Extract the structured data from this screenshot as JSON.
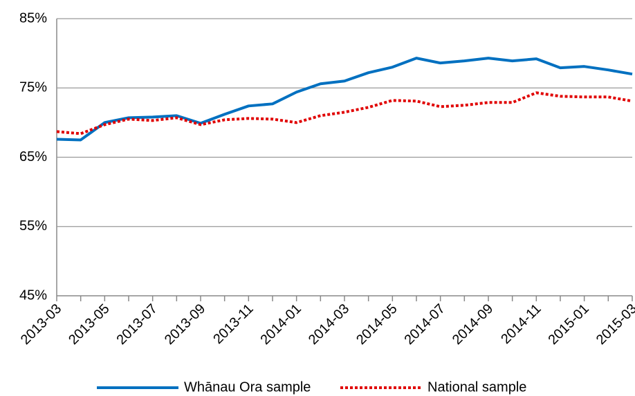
{
  "chart_data": {
    "type": "line",
    "categories": [
      "2013-03",
      null,
      "2013-05",
      null,
      "2013-07",
      null,
      "2013-09",
      null,
      "2013-11",
      null,
      "2014-01",
      null,
      "2014-03",
      null,
      "2014-05",
      null,
      "2014-07",
      null,
      "2014-09",
      null,
      "2014-11",
      null,
      "2015-01",
      null,
      "2015-03"
    ],
    "series": [
      {
        "name": "Whānau Ora sample",
        "color": "#0070c0",
        "style": "solid",
        "values": [
          67.6,
          67.5,
          70.0,
          70.7,
          70.8,
          71.0,
          69.9,
          71.2,
          72.4,
          72.7,
          74.4,
          75.6,
          76.0,
          77.2,
          78.0,
          79.3,
          78.6,
          78.9,
          79.3,
          78.9,
          79.2,
          77.9,
          78.1,
          77.6,
          77.0
        ]
      },
      {
        "name": "National sample",
        "color": "#e00000",
        "style": "dotted",
        "values": [
          68.7,
          68.4,
          69.7,
          70.5,
          70.3,
          70.7,
          69.7,
          70.4,
          70.6,
          70.5,
          70.0,
          71.0,
          71.5,
          72.2,
          73.2,
          73.1,
          72.3,
          72.5,
          72.9,
          72.9,
          74.3,
          73.8,
          73.7,
          73.7,
          73.1
        ]
      }
    ],
    "ylim": [
      45,
      85
    ],
    "yticks": [
      {
        "value": 45,
        "label": "45%"
      },
      {
        "value": 55,
        "label": "55%"
      },
      {
        "value": 65,
        "label": "65%"
      },
      {
        "value": 75,
        "label": "75%"
      },
      {
        "value": 85,
        "label": "85%"
      }
    ],
    "grid": true,
    "legend": "bottom"
  }
}
